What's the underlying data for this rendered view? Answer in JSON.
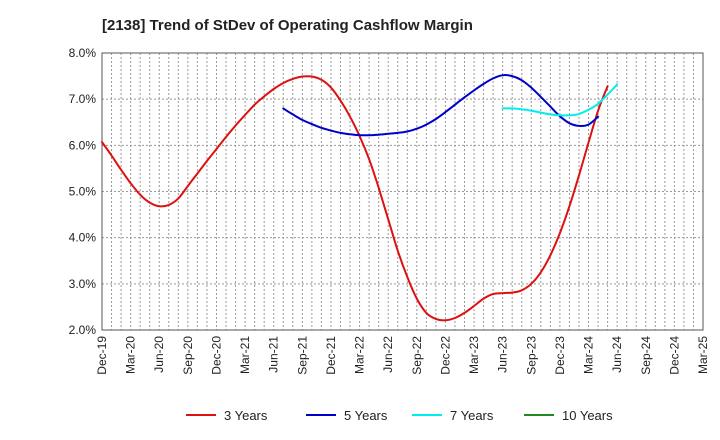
{
  "chart_data": {
    "type": "line",
    "title": "[2138]  Trend of StDev of Operating Cashflow Margin",
    "xlabel": "",
    "ylabel": "",
    "ylim": [
      2.0,
      8.0
    ],
    "yticks": [
      "2.0%",
      "3.0%",
      "4.0%",
      "5.0%",
      "6.0%",
      "7.0%",
      "8.0%"
    ],
    "xticks": [
      "Dec-19",
      "Mar-20",
      "Jun-20",
      "Sep-20",
      "Dec-20",
      "Mar-21",
      "Jun-21",
      "Sep-21",
      "Dec-21",
      "Mar-22",
      "Jun-22",
      "Sep-22",
      "Dec-22",
      "Mar-23",
      "Jun-23",
      "Sep-23",
      "Dec-23",
      "Mar-24",
      "Jun-24",
      "Sep-24",
      "Dec-24",
      "Mar-25"
    ],
    "grid": true,
    "legend_position": "bottom",
    "series": [
      {
        "name": "3 Years",
        "color": "#dd1111",
        "points": [
          [
            "Dec-19",
            6.07
          ],
          [
            "Jan-20",
            5.78
          ],
          [
            "Feb-20",
            5.47
          ],
          [
            "Mar-20",
            5.18
          ],
          [
            "Apr-20",
            4.93
          ],
          [
            "May-20",
            4.76
          ],
          [
            "Jun-20",
            4.68
          ],
          [
            "Jul-20",
            4.71
          ],
          [
            "Aug-20",
            4.85
          ],
          [
            "Sep-20",
            5.12
          ],
          [
            "Oct-20",
            5.39
          ],
          [
            "Nov-20",
            5.66
          ],
          [
            "Dec-20",
            5.92
          ],
          [
            "Jan-21",
            6.18
          ],
          [
            "Feb-21",
            6.43
          ],
          [
            "Mar-21",
            6.66
          ],
          [
            "Apr-21",
            6.88
          ],
          [
            "May-21",
            7.06
          ],
          [
            "Jun-21",
            7.22
          ],
          [
            "Jul-21",
            7.35
          ],
          [
            "Aug-21",
            7.44
          ],
          [
            "Sep-21",
            7.49
          ],
          [
            "Oct-21",
            7.49
          ],
          [
            "Nov-21",
            7.42
          ],
          [
            "Dec-21",
            7.25
          ],
          [
            "Jan-22",
            6.97
          ],
          [
            "Feb-22",
            6.62
          ],
          [
            "Mar-22",
            6.2
          ],
          [
            "Apr-22",
            5.7
          ],
          [
            "May-22",
            5.08
          ],
          [
            "Jun-22",
            4.4
          ],
          [
            "Jul-22",
            3.72
          ],
          [
            "Aug-22",
            3.15
          ],
          [
            "Sep-22",
            2.68
          ],
          [
            "Oct-22",
            2.37
          ],
          [
            "Nov-22",
            2.24
          ],
          [
            "Dec-22",
            2.21
          ],
          [
            "Jan-23",
            2.26
          ],
          [
            "Feb-23",
            2.37
          ],
          [
            "Mar-23",
            2.52
          ],
          [
            "Apr-23",
            2.68
          ],
          [
            "May-23",
            2.78
          ],
          [
            "Jun-23",
            2.8
          ],
          [
            "Jul-23",
            2.81
          ],
          [
            "Aug-23",
            2.86
          ],
          [
            "Sep-23",
            3.0
          ],
          [
            "Oct-23",
            3.25
          ],
          [
            "Nov-23",
            3.62
          ],
          [
            "Dec-23",
            4.1
          ],
          [
            "Jan-24",
            4.68
          ],
          [
            "Feb-24",
            5.35
          ],
          [
            "Mar-24",
            6.06
          ],
          [
            "Apr-24",
            6.75
          ],
          [
            "May-24",
            7.28
          ]
        ]
      },
      {
        "name": "5 Years",
        "color": "#0000cc",
        "points": [
          [
            "Jul-21",
            6.8
          ],
          [
            "Aug-21",
            6.67
          ],
          [
            "Sep-21",
            6.55
          ],
          [
            "Oct-21",
            6.46
          ],
          [
            "Nov-21",
            6.38
          ],
          [
            "Dec-21",
            6.32
          ],
          [
            "Jan-22",
            6.27
          ],
          [
            "Feb-22",
            6.24
          ],
          [
            "Mar-22",
            6.22
          ],
          [
            "Apr-22",
            6.22
          ],
          [
            "May-22",
            6.23
          ],
          [
            "Jun-22",
            6.25
          ],
          [
            "Jul-22",
            6.27
          ],
          [
            "Aug-22",
            6.3
          ],
          [
            "Sep-22",
            6.36
          ],
          [
            "Oct-22",
            6.45
          ],
          [
            "Nov-22",
            6.57
          ],
          [
            "Dec-22",
            6.72
          ],
          [
            "Jan-23",
            6.88
          ],
          [
            "Feb-23",
            7.04
          ],
          [
            "Mar-23",
            7.19
          ],
          [
            "Apr-23",
            7.33
          ],
          [
            "May-23",
            7.45
          ],
          [
            "Jun-23",
            7.52
          ],
          [
            "Jul-23",
            7.5
          ],
          [
            "Aug-23",
            7.41
          ],
          [
            "Sep-23",
            7.25
          ],
          [
            "Oct-23",
            7.05
          ],
          [
            "Nov-23",
            6.84
          ],
          [
            "Dec-23",
            6.63
          ],
          [
            "Jan-24",
            6.48
          ],
          [
            "Feb-24",
            6.42
          ],
          [
            "Mar-24",
            6.45
          ],
          [
            "Apr-24",
            6.62
          ]
        ]
      },
      {
        "name": "7 Years",
        "color": "#00eeee",
        "points": [
          [
            "Jun-23",
            6.8
          ],
          [
            "Jul-23",
            6.8
          ],
          [
            "Aug-23",
            6.78
          ],
          [
            "Sep-23",
            6.75
          ],
          [
            "Oct-23",
            6.71
          ],
          [
            "Nov-23",
            6.67
          ],
          [
            "Dec-23",
            6.65
          ],
          [
            "Jan-24",
            6.65
          ],
          [
            "Feb-24",
            6.68
          ],
          [
            "Mar-24",
            6.77
          ],
          [
            "Apr-24",
            6.9
          ],
          [
            "May-24",
            7.1
          ],
          [
            "Jun-24",
            7.32
          ]
        ]
      },
      {
        "name": "10 Years",
        "color": "#228822",
        "points": []
      }
    ]
  }
}
